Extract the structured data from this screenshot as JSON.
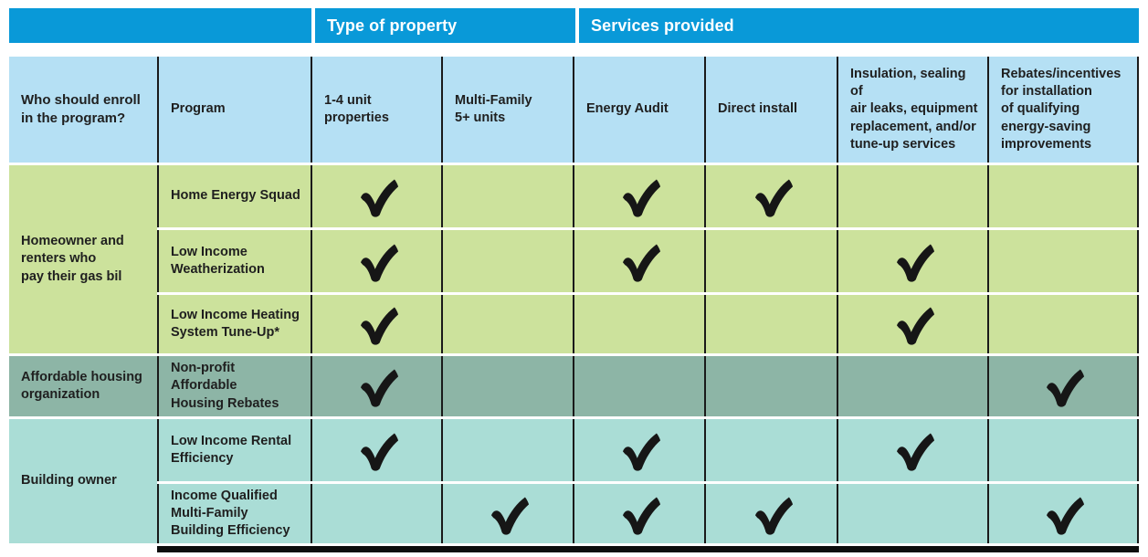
{
  "top_header": {
    "sections": [
      {
        "label": ""
      },
      {
        "label": "Type of property"
      },
      {
        "label": "Services provided"
      }
    ]
  },
  "columns": {
    "who": "Who should enroll\nin the program?",
    "program": "Program",
    "services": [
      "1-4 unit\nproperties",
      "Multi-Family\n5+ units",
      "Energy Audit",
      "Direct install",
      "Insulation, sealing of\nair leaks, equipment\nreplacement, and/or\ntune-up services",
      "Rebates/incentives\nfor installation\nof qualifying\nenergy-saving\nimprovements"
    ]
  },
  "groups": [
    {
      "who": "Homeowner and\nrenters who\npay their gas bil",
      "color": "#cce29c",
      "rows": [
        {
          "program": "Home Energy Squad",
          "checks": [
            true,
            false,
            true,
            true,
            false,
            false
          ]
        },
        {
          "program": "Low Income\nWeatherization",
          "checks": [
            true,
            false,
            true,
            false,
            true,
            false
          ]
        },
        {
          "program": "Low Income Heating\nSystem Tune-Up*",
          "checks": [
            true,
            false,
            false,
            false,
            true,
            false
          ]
        }
      ]
    },
    {
      "who": "Affordable housing\norganization",
      "color": "#8db5a6",
      "rows": [
        {
          "program": "Non-profit Affordable\nHousing Rebates",
          "checks": [
            true,
            false,
            false,
            false,
            false,
            true
          ]
        }
      ]
    },
    {
      "who": "Building owner",
      "color": "#aaddd6",
      "rows": [
        {
          "program": "Low Income Rental\nEfficiency",
          "checks": [
            true,
            false,
            true,
            false,
            true,
            false
          ]
        },
        {
          "program": "Income Qualified\nMulti-Family\nBuilding Efficiency",
          "checks": [
            false,
            true,
            true,
            true,
            false,
            true
          ]
        }
      ]
    }
  ],
  "icons": {
    "check": "check-icon"
  },
  "colors": {
    "top_bar": "#0999d8",
    "header_bg": "#b5e0f4",
    "group_homeowner": "#cce29c",
    "group_affordable": "#8db5a6",
    "group_building": "#aaddd6",
    "grid_line": "#1a1a1a",
    "check": "#161616",
    "bottom_bar": "#0d0d0d",
    "text": "#1f1f1f",
    "header_text": "#ffffff"
  }
}
